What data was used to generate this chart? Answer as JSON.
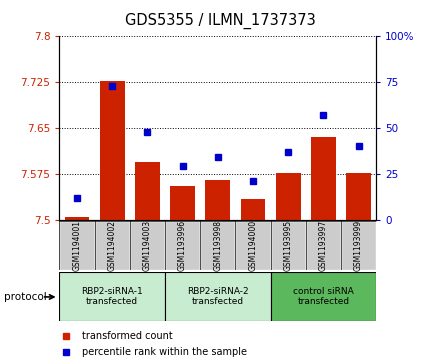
{
  "title": "GDS5355 / ILMN_1737373",
  "samples": [
    "GSM1194001",
    "GSM1194002",
    "GSM1194003",
    "GSM1193996",
    "GSM1193998",
    "GSM1194000",
    "GSM1193995",
    "GSM1193997",
    "GSM1193999"
  ],
  "red_values": [
    7.505,
    7.727,
    7.595,
    7.555,
    7.565,
    7.533,
    7.576,
    7.635,
    7.576
  ],
  "blue_values": [
    12,
    73,
    48,
    29,
    34,
    21,
    37,
    57,
    40
  ],
  "ylim_left": [
    7.5,
    7.8
  ],
  "ylim_right": [
    0,
    100
  ],
  "yticks_left": [
    7.5,
    7.575,
    7.65,
    7.725,
    7.8
  ],
  "ytick_labels_left": [
    "7.5",
    "7.575",
    "7.65",
    "7.725",
    "7.8"
  ],
  "yticks_right": [
    0,
    25,
    50,
    75,
    100
  ],
  "ytick_labels_right": [
    "0",
    "25",
    "50",
    "75",
    "100%"
  ],
  "groups": [
    {
      "label": "RBP2-siRNA-1\ntransfected",
      "indices": [
        0,
        1,
        2
      ],
      "color": "#c8ecd0"
    },
    {
      "label": "RBP2-siRNA-2\ntransfected",
      "indices": [
        3,
        4,
        5
      ],
      "color": "#c8ecd0"
    },
    {
      "label": "control siRNA\ntransfected",
      "indices": [
        6,
        7,
        8
      ],
      "color": "#5cb85c"
    }
  ],
  "bar_color": "#cc2200",
  "dot_color": "#0000cc",
  "sample_bg_color": "#cccccc",
  "protocol_label": "protocol",
  "legend_items": [
    {
      "color": "#cc2200",
      "label": "transformed count"
    },
    {
      "color": "#0000cc",
      "label": "percentile rank within the sample"
    }
  ],
  "left_axis_color": "#cc2200",
  "right_axis_color": "#0000cc"
}
